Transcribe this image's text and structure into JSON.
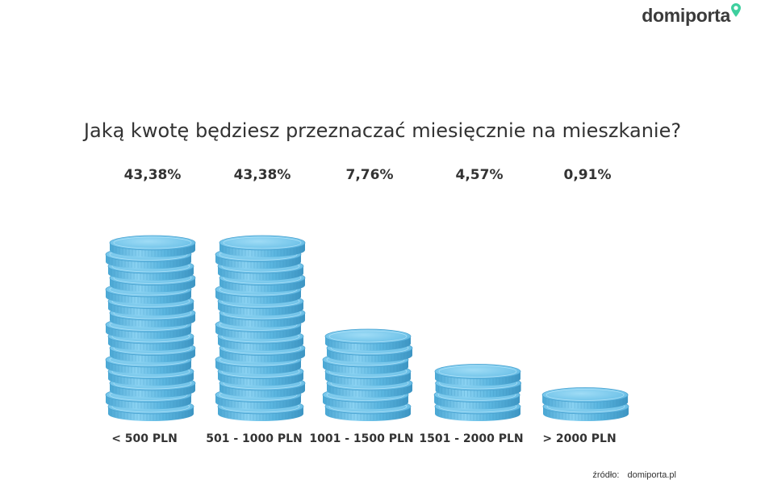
{
  "logo": {
    "text": "domiporta",
    "pin_color": "#3ecf9e"
  },
  "chart_data": {
    "type": "bar",
    "title": "Jaką kwotę będziesz przeznaczać miesięcznie na mieszkanie?",
    "categories": [
      "< 500 PLN",
      "501 - 1000 PLN",
      "1001 - 1500 PLN",
      "1501 - 2000 PLN",
      "> 2000 PLN"
    ],
    "values": [
      43.38,
      43.38,
      7.76,
      4.57,
      0.91
    ],
    "value_labels": [
      "43,38%",
      "43,38%",
      "7,76%",
      "4,57%",
      "0,91%"
    ],
    "coin_counts": [
      15,
      15,
      7,
      4,
      2
    ],
    "unit": "%",
    "bar_style": "stacked coins",
    "coin_color": "#6ec3ea",
    "grid": false
  },
  "source": {
    "label": "źródło:",
    "value": "domiporta.pl"
  }
}
